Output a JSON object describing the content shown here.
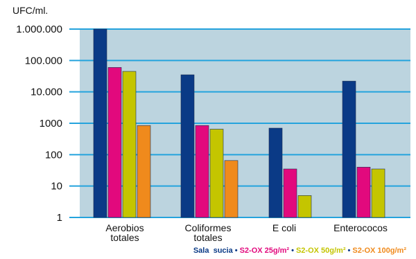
{
  "chart_data": {
    "type": "bar",
    "ylabel": "UFC/ml.",
    "yscale": "log",
    "ylim": [
      1,
      1000000
    ],
    "yticks": [
      1,
      10,
      100,
      1000,
      10000,
      100000,
      1000000
    ],
    "ytick_labels": [
      "1",
      "10",
      "100",
      "1000",
      "10.000",
      "100.000",
      "1.000.000"
    ],
    "grid": true,
    "legend_position": "bottom-right",
    "categories": [
      [
        "Aerobios",
        "totales"
      ],
      [
        "Coliformes",
        "totales"
      ],
      [
        "E coli"
      ],
      [
        "Enterococos"
      ]
    ],
    "series": [
      {
        "name": "Sala  sucia",
        "color": "#0a3a86",
        "values": [
          1000000,
          35000,
          700,
          22000
        ]
      },
      {
        "name": "S2-OX 25g/m²",
        "color": "#e2097d",
        "values": [
          60000,
          850,
          35,
          40
        ]
      },
      {
        "name": "S2-OX 50g/m²",
        "color": "#c4c500",
        "values": [
          45000,
          650,
          5,
          35
        ]
      },
      {
        "name": "S2-OX 100g/m²",
        "color": "#f08a1c",
        "values": [
          850,
          65,
          null,
          null
        ]
      }
    ]
  },
  "colors": {
    "plot_background": "#bcd4df",
    "gridline": "#24a3dd",
    "separator_dot": "#0a3a86"
  },
  "legend": {
    "separator": "•"
  }
}
